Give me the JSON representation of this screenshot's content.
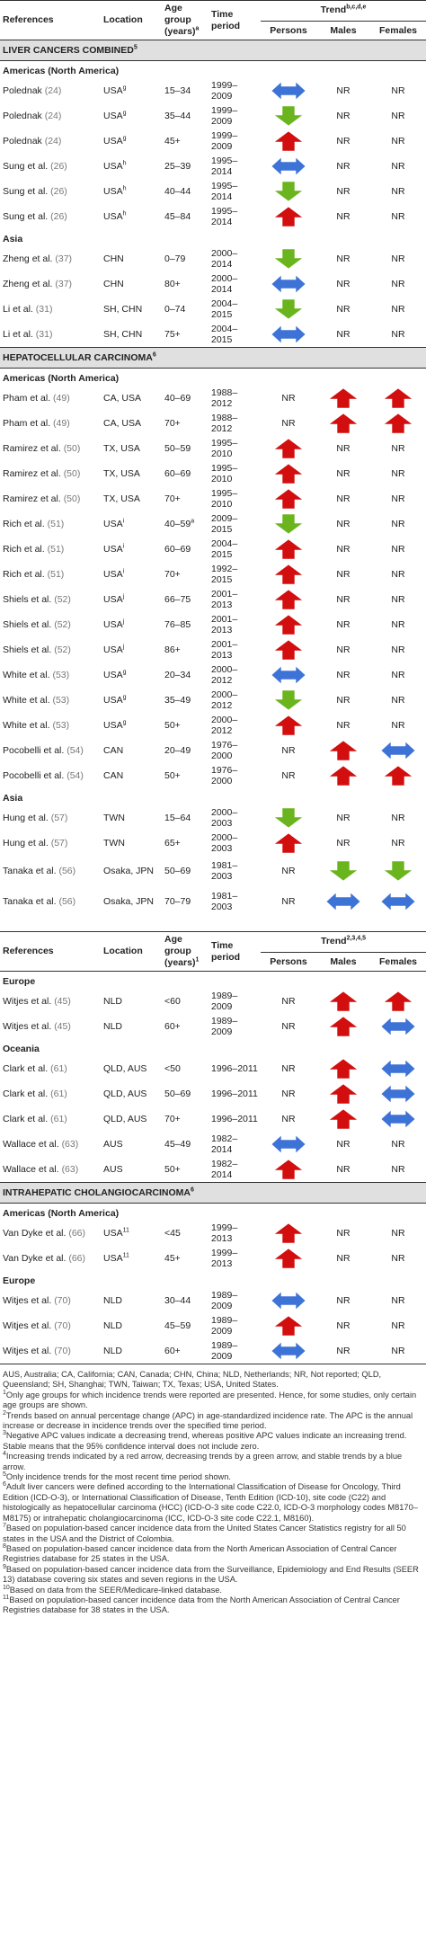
{
  "colors": {
    "up": "#d30e0e",
    "down": "#6ab41e",
    "stable": "#3d72d6"
  },
  "header1": {
    "references": "References",
    "location": "Location",
    "age": "Age group (years)",
    "age_sup": "a",
    "time": "Time period",
    "trend": "Trend",
    "trend_sup": "b,c,d,e",
    "persons": "Persons",
    "males": "Males",
    "females": "Females"
  },
  "header2": {
    "references": "References",
    "location": "Location",
    "age": "Age group (years)",
    "age_sup": "1",
    "time": "Time period",
    "trend": "Trend",
    "trend_sup": "2,3,4,5",
    "persons": "Persons",
    "males": "Males",
    "females": "Females"
  },
  "sections": [
    {
      "title": "LIVER CANCERS COMBINED",
      "title_sup": "5",
      "regions": [
        {
          "name": "Americas (North America)",
          "rows": [
            {
              "ref": "Polednak",
              "cite": "(24)",
              "loc": "USA",
              "loc_sup": "g",
              "age": "15–34",
              "period": "1999–2009",
              "persons": "stable",
              "males": "NR",
              "females": "NR"
            },
            {
              "ref": "Polednak",
              "cite": "(24)",
              "loc": "USA",
              "loc_sup": "g",
              "age": "35–44",
              "period": "1999–2009",
              "persons": "down",
              "males": "NR",
              "females": "NR"
            },
            {
              "ref": "Polednak",
              "cite": "(24)",
              "loc": "USA",
              "loc_sup": "g",
              "age": "45+",
              "period": "1999–2009",
              "persons": "up",
              "males": "NR",
              "females": "NR"
            },
            {
              "ref": "Sung et al.",
              "cite": "(26)",
              "loc": "USA",
              "loc_sup": "h",
              "age": "25–39",
              "period": "1995–2014",
              "persons": "stable",
              "males": "NR",
              "females": "NR"
            },
            {
              "ref": "Sung et al.",
              "cite": "(26)",
              "loc": "USA",
              "loc_sup": "h",
              "age": "40–44",
              "period": "1995–2014",
              "persons": "down",
              "males": "NR",
              "females": "NR"
            },
            {
              "ref": "Sung et al.",
              "cite": "(26)",
              "loc": "USA",
              "loc_sup": "h",
              "age": "45–84",
              "period": "1995–2014",
              "persons": "up",
              "males": "NR",
              "females": "NR"
            }
          ]
        },
        {
          "name": "Asia",
          "rows": [
            {
              "ref": "Zheng et al.",
              "cite": "(37)",
              "loc": "CHN",
              "loc_sup": "",
              "age": "0–79",
              "period": "2000–2014",
              "persons": "down",
              "males": "NR",
              "females": "NR"
            },
            {
              "ref": "Zheng et al.",
              "cite": "(37)",
              "loc": "CHN",
              "loc_sup": "",
              "age": "80+",
              "period": "2000–2014",
              "persons": "stable",
              "males": "NR",
              "females": "NR"
            },
            {
              "ref": "Li et al.",
              "cite": "(31)",
              "loc": "SH, CHN",
              "loc_sup": "",
              "age": "0–74",
              "period": "2004–2015",
              "persons": "down",
              "males": "NR",
              "females": "NR"
            },
            {
              "ref": "Li et al.",
              "cite": "(31)",
              "loc": "SH, CHN",
              "loc_sup": "",
              "age": "75+",
              "period": "2004–2015",
              "persons": "stable",
              "males": "NR",
              "females": "NR"
            }
          ]
        }
      ]
    },
    {
      "title": "HEPATOCELLULAR CARCINOMA",
      "title_sup": "6",
      "regions": [
        {
          "name": "Americas (North America)",
          "rows": [
            {
              "ref": "Pham et al.",
              "cite": "(49)",
              "loc": "CA, USA",
              "loc_sup": "",
              "age": "40–69",
              "period": "1988–2012",
              "persons": "NR",
              "males": "up",
              "females": "up"
            },
            {
              "ref": "Pham et al.",
              "cite": "(49)",
              "loc": "CA, USA",
              "loc_sup": "",
              "age": "70+",
              "period": "1988–2012",
              "persons": "NR",
              "males": "up",
              "females": "up"
            },
            {
              "ref": "Ramirez et al.",
              "cite": "(50)",
              "loc": "TX, USA",
              "loc_sup": "",
              "age": "50–59",
              "period": "1995–2010",
              "persons": "up",
              "males": "NR",
              "females": "NR"
            },
            {
              "ref": "Ramirez et al.",
              "cite": "(50)",
              "loc": "TX, USA",
              "loc_sup": "",
              "age": "60–69",
              "period": "1995–2010",
              "persons": "up",
              "males": "NR",
              "females": "NR"
            },
            {
              "ref": "Ramirez et al.",
              "cite": "(50)",
              "loc": "TX, USA",
              "loc_sup": "",
              "age": "70+",
              "period": "1995–2010",
              "persons": "up",
              "males": "NR",
              "females": "NR"
            },
            {
              "ref": "Rich et al.",
              "cite": "(51)",
              "loc": "USA",
              "loc_sup": "i",
              "age": "40–59",
              "age_sup": "a",
              "period": "2009–2015",
              "persons": "down",
              "males": "NR",
              "females": "NR"
            },
            {
              "ref": "Rich et al.",
              "cite": "(51)",
              "loc": "USA",
              "loc_sup": "i",
              "age": "60–69",
              "period": "2004–2015",
              "persons": "up",
              "males": "NR",
              "females": "NR"
            },
            {
              "ref": "Rich et al.",
              "cite": "(51)",
              "loc": "USA",
              "loc_sup": "i",
              "age": "70+",
              "period": "1992–2015",
              "persons": "up",
              "males": "NR",
              "females": "NR"
            },
            {
              "ref": "Shiels et al.",
              "cite": "(52)",
              "loc": "USA",
              "loc_sup": "j",
              "age": "66–75",
              "period": "2001–2013",
              "persons": "up",
              "males": "NR",
              "females": "NR"
            },
            {
              "ref": "Shiels et al.",
              "cite": "(52)",
              "loc": "USA",
              "loc_sup": "j",
              "age": "76–85",
              "period": "2001–2013",
              "persons": "up",
              "males": "NR",
              "females": "NR"
            },
            {
              "ref": "Shiels et al.",
              "cite": "(52)",
              "loc": "USA",
              "loc_sup": "j",
              "age": "86+",
              "period": "2001–2013",
              "persons": "up",
              "males": "NR",
              "females": "NR"
            },
            {
              "ref": "White et al.",
              "cite": "(53)",
              "loc": "USA",
              "loc_sup": "g",
              "age": "20–34",
              "period": "2000–2012",
              "persons": "stable",
              "males": "NR",
              "females": "NR"
            },
            {
              "ref": "White et al.",
              "cite": "(53)",
              "loc": "USA",
              "loc_sup": "g",
              "age": "35–49",
              "period": "2000–2012",
              "persons": "down",
              "males": "NR",
              "females": "NR"
            },
            {
              "ref": "White et al.",
              "cite": "(53)",
              "loc": "USA",
              "loc_sup": "g",
              "age": "50+",
              "period": "2000–2012",
              "persons": "up",
              "males": "NR",
              "females": "NR"
            },
            {
              "ref": "Pocobelli et al.",
              "cite": "(54)",
              "loc": "CAN",
              "loc_sup": "",
              "age": "20–49",
              "period": "1976–2000",
              "persons": "NR",
              "males": "up",
              "females": "stable"
            },
            {
              "ref": "Pocobelli et al.",
              "cite": "(54)",
              "loc": "CAN",
              "loc_sup": "",
              "age": "50+",
              "period": "1976–2000",
              "persons": "NR",
              "males": "up",
              "females": "up"
            }
          ]
        },
        {
          "name": "Asia",
          "rows": [
            {
              "ref": "Hung et al.",
              "cite": "(57)",
              "loc": "TWN",
              "loc_sup": "",
              "age": "15–64",
              "period": "2000–2003",
              "persons": "down",
              "males": "NR",
              "females": "NR"
            },
            {
              "ref": "Hung et al.",
              "cite": "(57)",
              "loc": "TWN",
              "loc_sup": "",
              "age": "65+",
              "period": "2000–2003",
              "persons": "up",
              "males": "NR",
              "females": "NR"
            },
            {
              "ref": "Tanaka et al.",
              "cite": "(56)",
              "loc": "Osaka, JPN",
              "loc_sup": "",
              "age": "50–69",
              "period": "1981–2003",
              "persons": "NR",
              "males": "down",
              "females": "down",
              "tall": true
            },
            {
              "ref": "Tanaka et al.",
              "cite": "(56)",
              "loc": "Osaka, JPN",
              "loc_sup": "",
              "age": "70–79",
              "period": "1981–2003",
              "persons": "NR",
              "males": "stable",
              "females": "stable",
              "tall": true
            }
          ]
        }
      ]
    },
    {
      "title": "",
      "title_sup": "",
      "continued": true,
      "regions": [
        {
          "name": "Europe",
          "rows": [
            {
              "ref": "Witjes et al.",
              "cite": "(45)",
              "loc": "NLD",
              "loc_sup": "",
              "age": "<60",
              "period": "1989–2009",
              "persons": "NR",
              "males": "up",
              "females": "up"
            },
            {
              "ref": "Witjes et al.",
              "cite": "(45)",
              "loc": "NLD",
              "loc_sup": "",
              "age": "60+",
              "period": "1989–2009",
              "persons": "NR",
              "males": "up",
              "females": "stable"
            }
          ]
        },
        {
          "name": "Oceania",
          "rows": [
            {
              "ref": "Clark et al.",
              "cite": "(61)",
              "loc": "QLD, AUS",
              "loc_sup": "",
              "age": "<50",
              "period": "1996–2011",
              "persons": "NR",
              "males": "up",
              "females": "stable"
            },
            {
              "ref": "Clark et al.",
              "cite": "(61)",
              "loc": "QLD, AUS",
              "loc_sup": "",
              "age": "50–69",
              "period": "1996–2011",
              "persons": "NR",
              "males": "up",
              "females": "stable"
            },
            {
              "ref": "Clark et al.",
              "cite": "(61)",
              "loc": "QLD, AUS",
              "loc_sup": "",
              "age": "70+",
              "period": "1996–2011",
              "persons": "NR",
              "males": "up",
              "females": "stable"
            },
            {
              "ref": "Wallace et al.",
              "cite": "(63)",
              "loc": "AUS",
              "loc_sup": "",
              "age": "45–49",
              "period": "1982–2014",
              "persons": "stable",
              "males": "NR",
              "females": "NR"
            },
            {
              "ref": "Wallace et al.",
              "cite": "(63)",
              "loc": "AUS",
              "loc_sup": "",
              "age": "50+",
              "period": "1982–2014",
              "persons": "up",
              "males": "NR",
              "females": "NR"
            }
          ]
        }
      ]
    },
    {
      "title": "INTRAHEPATIC CHOLANGIOCARCINOMA",
      "title_sup": "6",
      "regions": [
        {
          "name": "Americas (North America)",
          "rows": [
            {
              "ref": "Van Dyke et al.",
              "cite": "(66)",
              "loc": "USA",
              "loc_sup": "11",
              "age": "<45",
              "period": "1999–2013",
              "persons": "up",
              "males": "NR",
              "females": "NR"
            },
            {
              "ref": "Van Dyke et al.",
              "cite": "(66)",
              "loc": "USA",
              "loc_sup": "11",
              "age": "45+",
              "period": "1999–2013",
              "persons": "up",
              "males": "NR",
              "females": "NR"
            }
          ]
        },
        {
          "name": "Europe",
          "rows": [
            {
              "ref": "Witjes et al.",
              "cite": "(70)",
              "loc": "NLD",
              "loc_sup": "",
              "age": "30–44",
              "period": "1989–2009",
              "persons": "stable",
              "males": "NR",
              "females": "NR"
            },
            {
              "ref": "Witjes et al.",
              "cite": "(70)",
              "loc": "NLD",
              "loc_sup": "",
              "age": "45–59",
              "period": "1989–2009",
              "persons": "up",
              "males": "NR",
              "females": "NR"
            },
            {
              "ref": "Witjes et al.",
              "cite": "(70)",
              "loc": "NLD",
              "loc_sup": "",
              "age": "60+",
              "period": "1989–2009",
              "persons": "stable",
              "males": "NR",
              "females": "NR"
            }
          ]
        }
      ]
    }
  ],
  "footnotes": [
    {
      "sup": "",
      "text": "AUS, Australia; CA, California; CAN, Canada; CHN, China; NLD, Netherlands; NR, Not reported; QLD, Queensland; SH, Shanghai; TWN, Taiwan; TX, Texas; USA, United States."
    },
    {
      "sup": "1",
      "text": "Only age groups for which incidence trends were reported are presented. Hence, for some studies, only certain age groups are shown."
    },
    {
      "sup": "2",
      "text": "Trends based on annual percentage change (APC) in age-standardized incidence rate. The APC is the annual increase or decrease in incidence trends over the specified time period."
    },
    {
      "sup": "3",
      "text": "Negative APC values indicate a decreasing trend, whereas positive APC values indicate an increasing trend. Stable means that the 95% confidence interval does not include zero."
    },
    {
      "sup": "4",
      "text": "Increasing trends indicated by a red arrow, decreasing trends by a green arrow, and stable trends by a blue arrow."
    },
    {
      "sup": "5",
      "text": "Only incidence trends for the most recent time period shown."
    },
    {
      "sup": "6",
      "text": "Adult liver cancers were defined according to the International Classification of Disease for Oncology, Third Edition (ICD-O-3), or International Classification of Disease, Tenth Edition (ICD-10), site code (C22) and histologically as hepatocellular carcinoma (HCC) (ICD-O-3 site code C22.0, ICD-O-3 morphology codes M8170–M8175) or intrahepatic cholangiocarcinoma (ICC, ICD-O-3 site code C22.1, M8160)."
    },
    {
      "sup": "7",
      "text": "Based on population-based cancer incidence data from the United States Cancer Statistics registry for all 50 states in the USA and the District of Colombia."
    },
    {
      "sup": "8",
      "text": "Based on population-based cancer incidence data from the North American Association of Central Cancer Registries database for 25 states in the USA."
    },
    {
      "sup": "9",
      "text": "Based on population-based cancer incidence data from the Surveillance, Epidemiology and End Results (SEER 13) database covering six states and seven regions in the USA."
    },
    {
      "sup": "10",
      "text": "Based on data from the SEER/Medicare-linked database."
    },
    {
      "sup": "11",
      "text": "Based on population-based cancer incidence data from the North American Association of Central Cancer Registries database for 38 states in the USA."
    }
  ]
}
